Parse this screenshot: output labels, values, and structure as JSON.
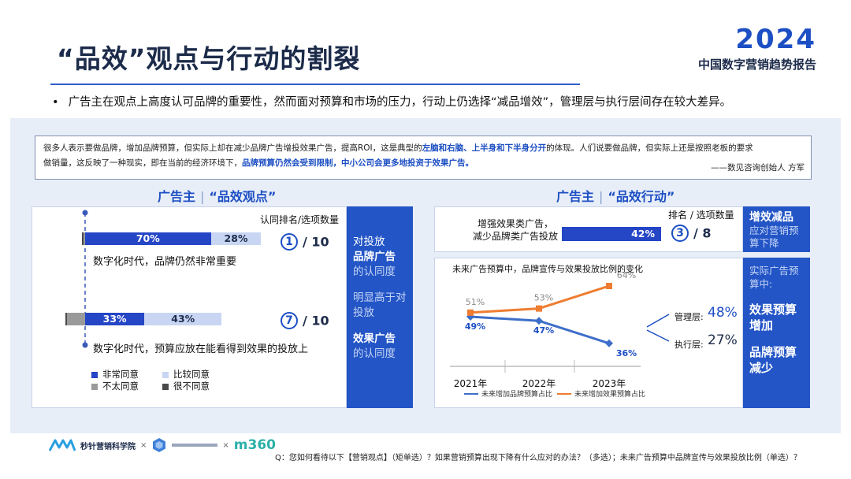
{
  "header": {
    "title": "“品效”观点与行动的割裂",
    "brand_year": "2024",
    "brand_sub": "中国数字营销趋势报告"
  },
  "bullet": "广告主在观点上高度认可品牌的重要性，然而面对预算和市场的压力，行动上仍选择“减品增效”，管理层与执行层间存在较大差异。",
  "quote": {
    "line1_a": "很多人表示要做品牌，增加品牌预算，但实际上却在减少品牌广告增投效果广告，提高ROI，这是典型的",
    "line1_hl": "左脑和右脑、上半身和下半身分开",
    "line1_b": "的体现。人们说要做品牌，但实际上还是按照老板的要求",
    "line2_a": "做销量，这反映了一种现实，即在当前的经济环境下，",
    "line2_hl": "品牌预算仍然会受到限制，中小公司会更多地投资于效果广告。",
    "author": "——数见咨询创始人 方军"
  },
  "left": {
    "section_a": "广告主",
    "section_sep": "|",
    "section_b": "“品效观点”",
    "col_head": "认同排名/选项数量",
    "statements": [
      {
        "text": "数字化时代，品牌仍然非常重要",
        "rank": "1",
        "rank_total": "/ 10"
      },
      {
        "text": "数字化时代，预算应放在能看得到效果的投放上",
        "rank": "7",
        "rank_total": "/ 10"
      }
    ],
    "legend": [
      "非常同意",
      "比较同意",
      "不太同意",
      "很不同意"
    ],
    "side": {
      "l1": "对投放",
      "l2": "品牌广告",
      "l3": "的认同度",
      "l4": "明显高于对",
      "l5": "投放",
      "l6": "效果广告",
      "l7": "的认同度"
    }
  },
  "right": {
    "section_a": "广告主",
    "section_sep": "|",
    "section_b": "“品效行动”",
    "col_head": "排名 / 选项数量",
    "action_label_1": "增强效果类广告，",
    "action_label_2": "减少品牌类广告投放",
    "action_value_label": "42%",
    "rank": "3",
    "rank_total": "/ 8",
    "top_side": {
      "b": "增效减品",
      "c1": "应对营销预",
      "c2": "算下降"
    },
    "chart_title": "未来广告预算中，品牌宣传与效果投放比例的变化",
    "mgmt_label": "管理层:",
    "mgmt_value": "48%",
    "exec_label": "执行层:",
    "exec_value": "27%",
    "bottom_side": {
      "c1": "实际广告预",
      "c2": "算中:",
      "b1": "效果预算",
      "b2": "增加",
      "b3": "品牌预算",
      "b4": "减少"
    }
  },
  "footer": {
    "logo1": "秒针营销科学院",
    "times": "×",
    "logo3": "m360",
    "question": "Q：您如何看待以下【营销观点】（矩单选）？如果营销预算出现下降有什么应对的办法？（多选）；未来广告预算中品牌宣传与效果投放比例（单选）？"
  },
  "colors": {
    "accent": "#1d4fc4",
    "strong_agree": "#2546c5",
    "agree": "#c8d6f3",
    "disagree": "#9a9a9a",
    "strongly_disagree": "#4a4a4a",
    "brand_line": "#3d6ec9",
    "effect_line": "#ee7d31"
  },
  "chart_data": [
    {
      "type": "bar",
      "orientation": "horizontal-stacked",
      "categories": [
        "数字化时代，品牌仍然非常重要",
        "数字化时代，预算应放在能看得到效果的投放上"
      ],
      "series": [
        {
          "name": "非常同意",
          "values": [
            70,
            33
          ]
        },
        {
          "name": "比较同意",
          "values": [
            28,
            43
          ]
        },
        {
          "name": "不太同意",
          "values": [
            1,
            20
          ]
        },
        {
          "name": "很不同意",
          "values": [
            1,
            1
          ]
        }
      ],
      "labels": [
        [
          "70%",
          "28%"
        ],
        [
          "33%",
          "43%"
        ]
      ]
    },
    {
      "type": "bar",
      "orientation": "horizontal",
      "categories": [
        "增强效果类广告，减少品牌类广告投放"
      ],
      "values": [
        42
      ],
      "labels": [
        "42%"
      ]
    },
    {
      "type": "line",
      "title": "未来广告预算中，品牌宣传与效果投放比例的变化",
      "categories": [
        "2021年",
        "2022年",
        "2023年"
      ],
      "series": [
        {
          "name": "未来增加品牌预算占比",
          "values": [
            49,
            47,
            36
          ],
          "labels": [
            "49%",
            "47%",
            "36%"
          ]
        },
        {
          "name": "未来增加效果预算占比",
          "values": [
            51,
            53,
            64
          ],
          "labels": [
            "51%",
            "53%",
            "64%"
          ]
        }
      ]
    }
  ]
}
